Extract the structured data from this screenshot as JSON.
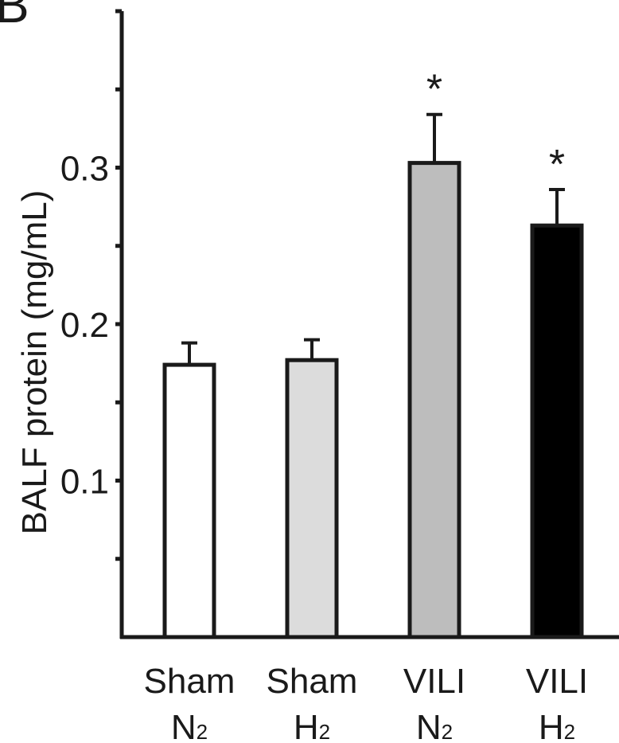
{
  "panel_letter": "B",
  "chart_data": {
    "type": "bar",
    "categories": [
      {
        "line1": "Sham",
        "line2_base": "N",
        "line2_sub": "2"
      },
      {
        "line1": "Sham",
        "line2_base": "H",
        "line2_sub": "2"
      },
      {
        "line1": "VILI",
        "line2_base": "N",
        "line2_sub": "2"
      },
      {
        "line1": "VILI",
        "line2_base": "H",
        "line2_sub": "2"
      }
    ],
    "values": [
      0.174,
      0.177,
      0.303,
      0.263
    ],
    "errors": [
      0.014,
      0.013,
      0.031,
      0.023
    ],
    "significance": [
      "",
      "",
      "*",
      "*"
    ],
    "bar_colors": [
      "#ffffff",
      "#dcdcdc",
      "#bdbdbd",
      "#000000"
    ],
    "ylabel": "BALF protein (mg/mL)",
    "ylim": [
      0,
      0.4
    ],
    "yticks": [
      0.05,
      0.1,
      0.15,
      0.2,
      0.25,
      0.3,
      0.35,
      0.4
    ],
    "ytick_labels": [
      {
        "value": 0.1,
        "label": "0.1"
      },
      {
        "value": 0.2,
        "label": "0.2"
      },
      {
        "value": 0.3,
        "label": "0.3"
      }
    ],
    "grid": false
  }
}
